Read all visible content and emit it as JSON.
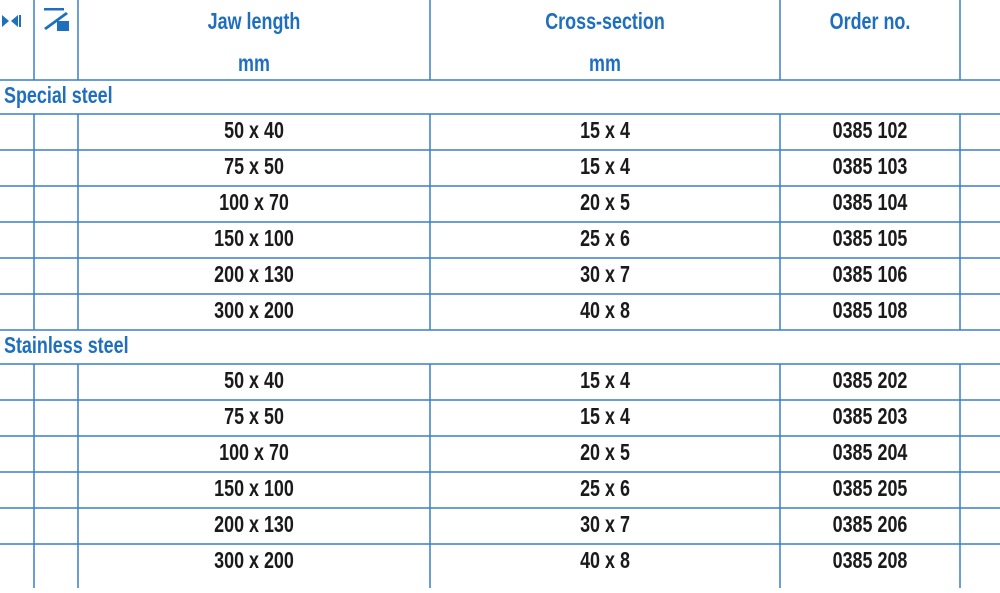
{
  "header": {
    "columns": [
      "Jaw length",
      "Cross-section",
      "Order no."
    ],
    "units": [
      "mm",
      "mm"
    ]
  },
  "sections": [
    {
      "title": "Special steel",
      "rows": [
        [
          "50 x 40",
          "15 x 4",
          "0385 102"
        ],
        [
          "75 x 50",
          "15 x 4",
          "0385 103"
        ],
        [
          "100 x 70",
          "20 x 5",
          "0385 104"
        ],
        [
          "150 x 100",
          "25 x 6",
          "0385 105"
        ],
        [
          "200 x 130",
          "30 x 7",
          "0385 106"
        ],
        [
          "300 x 200",
          "40 x 8",
          "0385 108"
        ]
      ]
    },
    {
      "title": "Stainless steel",
      "rows": [
        [
          "50 x 40",
          "15 x 4",
          "0385 202"
        ],
        [
          "75 x 50",
          "15 x 4",
          "0385 203"
        ],
        [
          "100 x 70",
          "20 x 5",
          "0385 204"
        ],
        [
          "150 x 100",
          "25 x 6",
          "0385 205"
        ],
        [
          "200 x 130",
          "30 x 7",
          "0385 206"
        ],
        [
          "300 x 200",
          "40 x 8",
          "0385 208"
        ]
      ]
    }
  ]
}
